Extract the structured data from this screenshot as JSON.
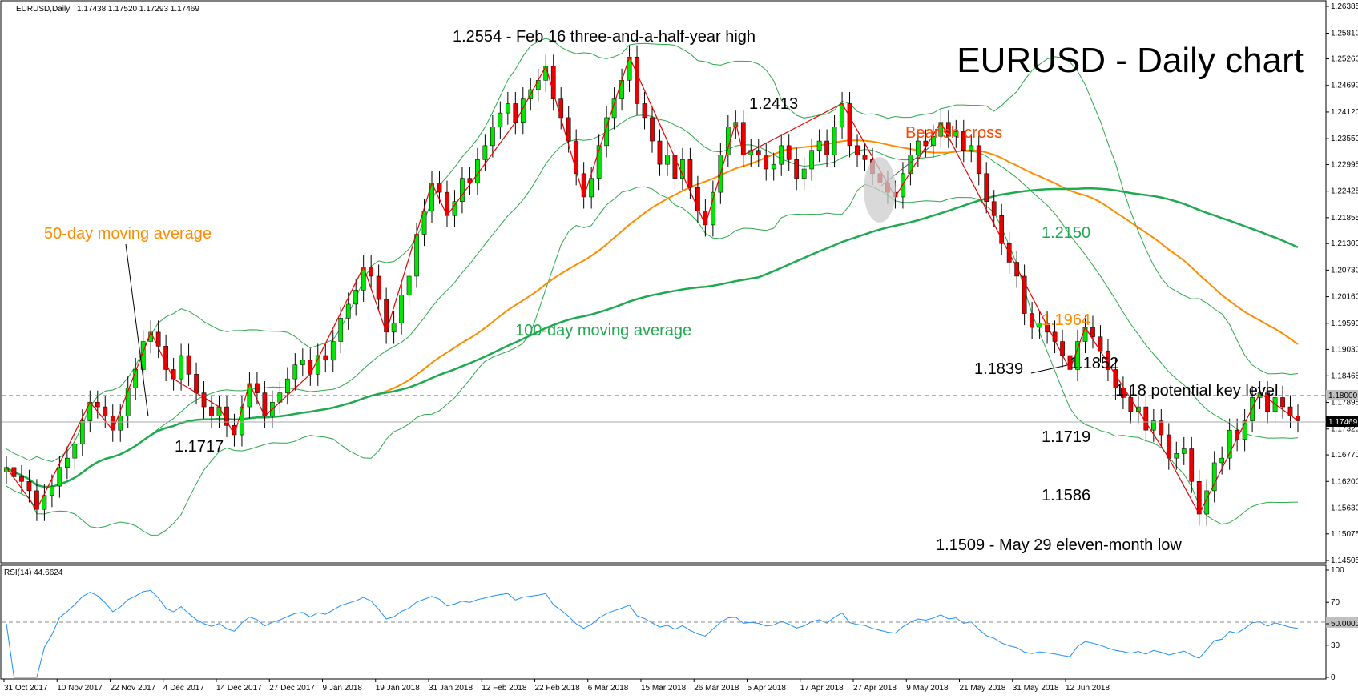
{
  "header": {
    "symbol": "EURUSD,Daily",
    "ohlc": "1.17438 1.17520 1.17293 1.17469"
  },
  "title": "EURUSD - Daily chart",
  "colors": {
    "up": "#00e600",
    "down": "#e60000",
    "ma50": "#ff8c00",
    "ma100": "#1faa4f",
    "bands": "#2aa84a",
    "zigzag": "#e60000",
    "rsi": "#1e90ff",
    "bearish_cross_label": "#ff4500"
  },
  "chart_data": [
    {
      "type": "candlestick",
      "name": "main",
      "ylim": [
        1.14505,
        1.26385
      ],
      "y_ticks": [
        "1.26385",
        "1.25810",
        "1.25260",
        "1.24690",
        "1.24120",
        "1.23550",
        "1.22995",
        "1.22425",
        "1.21855",
        "1.21300",
        "1.20730",
        "1.20160",
        "1.19590",
        "1.19030",
        "1.18465",
        "1.17895",
        "1.17325",
        "1.16770",
        "1.16200",
        "1.15630",
        "1.15075",
        "1.14505"
      ],
      "x_ticks": [
        "31 Oct 2017",
        "10 Nov 2017",
        "22 Nov 2017",
        "4 Dec 2017",
        "14 Dec 2017",
        "27 Dec 2017",
        "9 Jan 2018",
        "19 Jan 2018",
        "31 Jan 2018",
        "12 Feb 2018",
        "22 Feb 2018",
        "6 Mar 2018",
        "15 Mar 2018",
        "26 Mar 2018",
        "5 Apr 2018",
        "17 Apr 2018",
        "27 Apr 2018",
        "9 May 2018",
        "21 May 2018",
        "31 May 2018",
        "12 Jun 2018"
      ],
      "current_price": "1.17469",
      "key_level": "1.18000",
      "candles_close": [
        1.165,
        1.163,
        1.162,
        1.16,
        1.156,
        1.159,
        1.161,
        1.165,
        1.167,
        1.17,
        1.175,
        1.179,
        1.178,
        1.176,
        1.173,
        1.176,
        1.182,
        1.186,
        1.192,
        1.194,
        1.191,
        1.186,
        1.184,
        1.189,
        1.185,
        1.181,
        1.178,
        1.176,
        1.178,
        1.174,
        1.172,
        1.178,
        1.183,
        1.181,
        1.176,
        1.179,
        1.181,
        1.184,
        1.187,
        1.188,
        1.185,
        1.189,
        1.188,
        1.192,
        1.197,
        1.2,
        1.203,
        1.208,
        1.206,
        1.201,
        1.194,
        1.196,
        1.202,
        1.206,
        1.215,
        1.22,
        1.226,
        1.224,
        1.219,
        1.222,
        1.227,
        1.226,
        1.231,
        1.234,
        1.238,
        1.241,
        1.243,
        1.239,
        1.244,
        1.246,
        1.248,
        1.251,
        1.244,
        1.24,
        1.235,
        1.228,
        1.223,
        1.227,
        1.234,
        1.24,
        1.244,
        1.248,
        1.253,
        1.243,
        1.24,
        1.235,
        1.23,
        1.232,
        1.227,
        1.231,
        1.225,
        1.22,
        1.217,
        1.224,
        1.232,
        1.238,
        1.239,
        1.232,
        1.233,
        1.232,
        1.229,
        1.23,
        1.234,
        1.231,
        1.227,
        1.229,
        1.233,
        1.235,
        1.232,
        1.238,
        1.243,
        1.234,
        1.232,
        1.231,
        1.228,
        1.226,
        1.224,
        1.223,
        1.228,
        1.232,
        1.235,
        1.234,
        1.236,
        1.239,
        1.236,
        1.237,
        1.233,
        1.234,
        1.228,
        1.222,
        1.219,
        1.213,
        1.209,
        1.206,
        1.198,
        1.195,
        1.196,
        1.194,
        1.192,
        1.189,
        1.186,
        1.192,
        1.195,
        1.193,
        1.19,
        1.186,
        1.182,
        1.18,
        1.177,
        1.178,
        1.173,
        1.175,
        1.172,
        1.167,
        1.168,
        1.169,
        1.162,
        1.155,
        1.16,
        1.166,
        1.167,
        1.173,
        1.171,
        1.175,
        1.18,
        1.181,
        1.177,
        1.18,
        1.178,
        1.176,
        1.175
      ],
      "series": [
        {
          "name": "50-day moving average",
          "label": "1.1964"
        },
        {
          "name": "100-day moving average",
          "label": "1.2150"
        }
      ]
    },
    {
      "type": "line",
      "name": "RSI(14)",
      "ylim": [
        0,
        100
      ],
      "y_ticks": [
        "100",
        "70",
        "50.0000",
        "30",
        "0"
      ],
      "level": 50
    }
  ],
  "panel": {
    "rsi_label": "RSI(14) 44.6624"
  },
  "annotations": {
    "high": "1.2554 - Feb 16 three-and-a-half-year high",
    "peak2": "1.2413",
    "bearish_cross": "Bearish cross",
    "ma100_value": "1.2150",
    "ma50_value": "1.1964",
    "ma50_name": "50-day moving average",
    "ma100_name": "100-day moving average",
    "low_dec": "1.1717",
    "v1839": "1.1839",
    "v1852": "1.1852",
    "key_level": "1.18 potential key level",
    "v1719": "1.1719",
    "v1586": "1.1586",
    "low": "1.1509 - May 29 eleven-month low"
  }
}
